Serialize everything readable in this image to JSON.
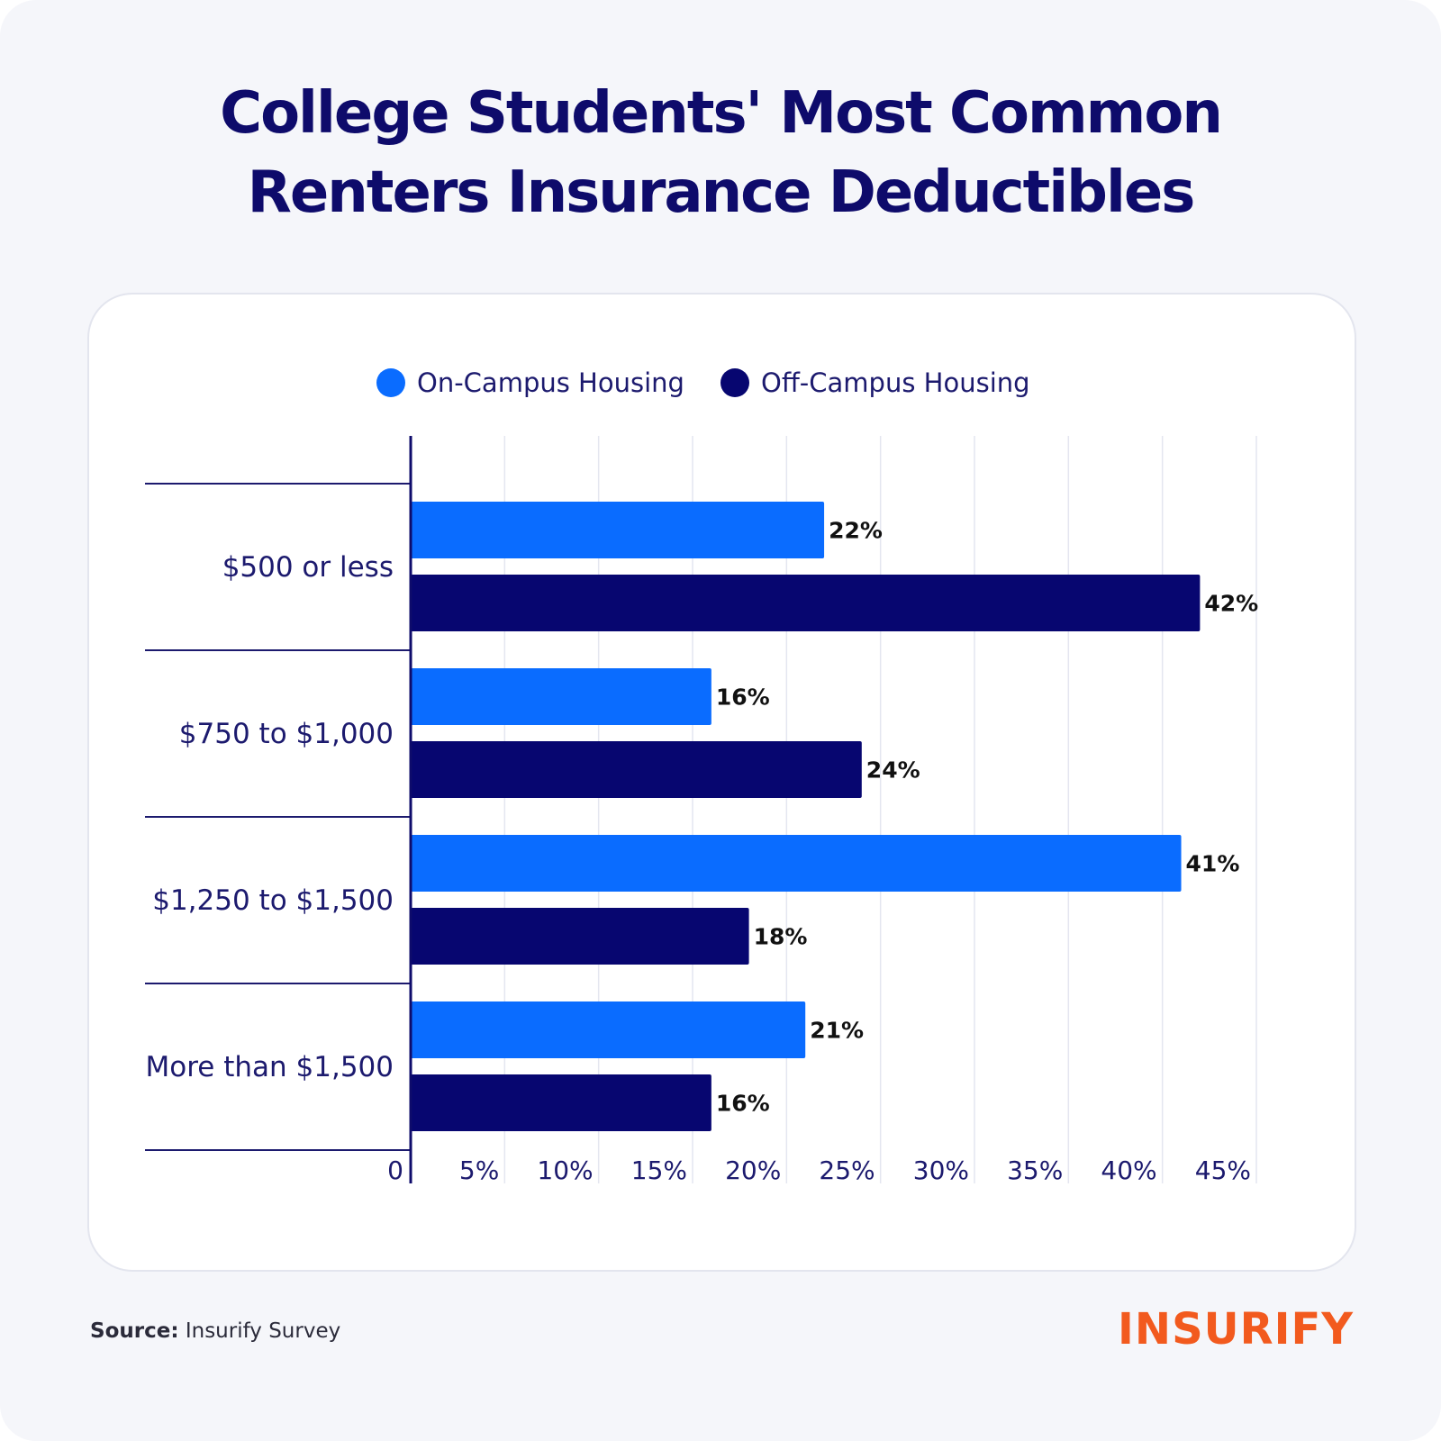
{
  "footer": {
    "source_label": "Source:",
    "source_text": "Insurify Survey",
    "brand": "INSURIFY"
  },
  "colors": {
    "on_campus": "#0a6cff",
    "off_campus": "#070670",
    "title": "#0e0b6b",
    "brand": "#f25a1e"
  },
  "chart_data": {
    "type": "bar",
    "orientation": "horizontal",
    "title": "College Students' Most Common Renters Insurance Deductibles",
    "title_lines": [
      "College Students' Most Common",
      "Renters Insurance Deductibles"
    ],
    "categories": [
      "$500 or less",
      "$750 to $1,000",
      "$1,250 to $1,500",
      "More than $1,500"
    ],
    "series": [
      {
        "name": "On-Campus Housing",
        "color": "#0a6cff",
        "values": [
          22,
          16,
          41,
          21
        ]
      },
      {
        "name": "Off-Campus Housing",
        "color": "#070670",
        "values": [
          42,
          24,
          18,
          16
        ]
      }
    ],
    "value_labels": [
      [
        "22%",
        "16%",
        "41%",
        "21%"
      ],
      [
        "42%",
        "24%",
        "18%",
        "16%"
      ]
    ],
    "xlim": [
      0,
      45
    ],
    "x_ticks": [
      0,
      5,
      10,
      15,
      20,
      25,
      30,
      35,
      40,
      45
    ],
    "x_tick_labels": [
      "0",
      "5%",
      "10%",
      "15%",
      "20%",
      "25%",
      "30%",
      "35%",
      "40%",
      "45%"
    ],
    "xlabel": "",
    "ylabel": "",
    "grid": true,
    "legend_position": "top-center"
  }
}
